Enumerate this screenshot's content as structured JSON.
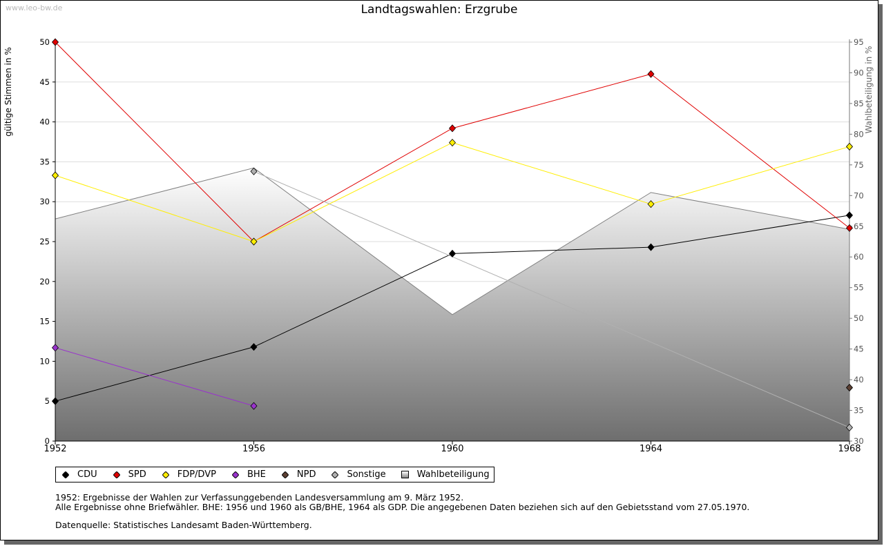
{
  "watermark": "www.leo-bw.de",
  "chart_data": {
    "type": "line",
    "title": "Landtagswahlen: Erzgrube",
    "ylabel": "gültige Stimmen in %",
    "y2label": "Wahlbeteiligung in %",
    "ylim": [
      0,
      50
    ],
    "y2lim": [
      30,
      95
    ],
    "yticks": [
      0,
      5,
      10,
      15,
      20,
      25,
      30,
      35,
      40,
      45,
      50
    ],
    "y2ticks": [
      30,
      35,
      40,
      45,
      50,
      55,
      60,
      65,
      70,
      75,
      80,
      85,
      90,
      95
    ],
    "x": [
      "1952",
      "1956",
      "1960",
      "1964",
      "1968"
    ],
    "series": [
      {
        "name": "Wahlbeteiligung",
        "kind": "area",
        "axis": "y2",
        "color": "#808080",
        "values": [
          66.2,
          74.5,
          50.6,
          70.5,
          64.5
        ]
      },
      {
        "name": "CDU",
        "kind": "line",
        "axis": "y",
        "color": "#000000",
        "values": [
          5.0,
          11.8,
          23.5,
          24.3,
          28.3
        ]
      },
      {
        "name": "SPD",
        "kind": "line",
        "axis": "y",
        "color": "#e00000",
        "values": [
          50.0,
          25.0,
          39.2,
          46.0,
          26.7
        ]
      },
      {
        "name": "FDP/DVP",
        "kind": "line",
        "axis": "y",
        "color": "#ffee00",
        "values": [
          33.3,
          25.0,
          37.4,
          29.7,
          36.9
        ]
      },
      {
        "name": "BHE",
        "kind": "line",
        "axis": "y",
        "color": "#9933cc",
        "values": [
          11.7,
          4.4,
          null,
          null,
          null
        ]
      },
      {
        "name": "NPD",
        "kind": "line",
        "axis": "y",
        "color": "#5c4033",
        "values": [
          null,
          null,
          null,
          null,
          6.7
        ]
      },
      {
        "name": "Sonstige",
        "kind": "line",
        "axis": "y",
        "color": "#b0b0b0",
        "values": [
          null,
          33.8,
          null,
          null,
          1.7
        ]
      }
    ]
  },
  "legend": [
    {
      "label": "CDU",
      "color": "#000000",
      "shape": "diamond"
    },
    {
      "label": "SPD",
      "color": "#e00000",
      "shape": "diamond"
    },
    {
      "label": "FDP/DVP",
      "color": "#ffee00",
      "shape": "diamond"
    },
    {
      "label": "BHE",
      "color": "#9933cc",
      "shape": "diamond"
    },
    {
      "label": "NPD",
      "color": "#5c4033",
      "shape": "diamond"
    },
    {
      "label": "Sonstige",
      "color": "#b0b0b0",
      "shape": "diamond"
    },
    {
      "label": "Wahlbeteiligung",
      "color": "#808080",
      "shape": "square"
    }
  ],
  "notes": {
    "line1": "1952: Ergebnisse der Wahlen zur Verfassunggebenden Landesversammlung am 9. März 1952.",
    "line2": "Alle Ergebnisse ohne Briefwähler. BHE: 1956 und 1960 als GB/BHE, 1964 als GDP. Die angegebenen Daten beziehen sich auf den Gebietsstand vom 27.05.1970.",
    "source": "Datenquelle: Statistisches Landesamt Baden-Württemberg."
  }
}
